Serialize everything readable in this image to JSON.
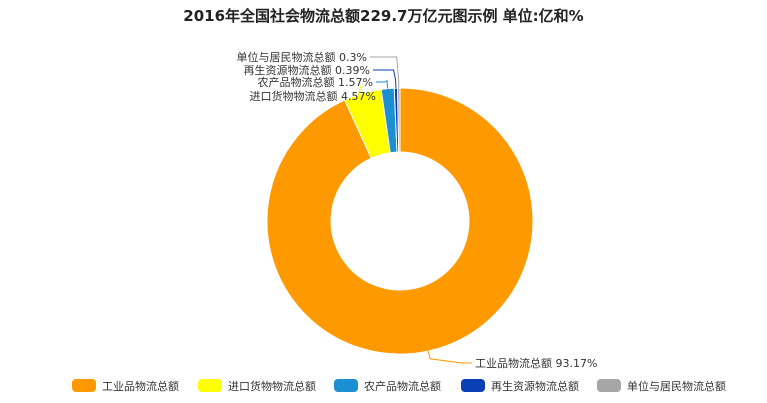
{
  "chart_data": {
    "type": "pie",
    "title": "2016年全国社会物流总额229.7万亿元图示例 单位:亿和%",
    "donut": true,
    "legend_position": "bottom",
    "slices": [
      {
        "name": "工业品物流总额",
        "value": 93.17,
        "label": "工业品物流总额 93.17%",
        "color": "#ff9900"
      },
      {
        "name": "进口货物物流总额",
        "value": 4.57,
        "label": "进口货物物流总额 4.57%",
        "color": "#ffff00"
      },
      {
        "name": "农产品物流总额",
        "value": 1.57,
        "label": "农产品物流总额 1.57%",
        "color": "#1b8fd2"
      },
      {
        "name": "再生资源物流总额",
        "value": 0.39,
        "label": "再生资源物流总额 0.39%",
        "color": "#0b3fb5"
      },
      {
        "name": "单位与居民物流总额",
        "value": 0.3,
        "label": "单位与居民物流总额 0.3%",
        "color": "#a6a6a6"
      }
    ]
  }
}
